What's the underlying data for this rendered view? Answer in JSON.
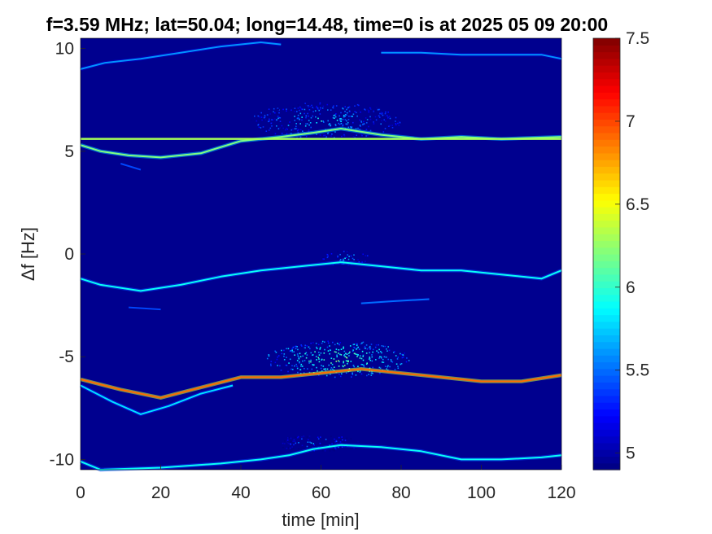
{
  "chart_data": {
    "type": "heatmap",
    "title": "f=3.59 MHz;  lat=50.04; long=14.48, time=0 is at 2025 05 09 20:00",
    "xlabel": "time [min]",
    "ylabel": "Δf [Hz]",
    "xlim": [
      0,
      120
    ],
    "ylim": [
      -10.5,
      10.5
    ],
    "xticks": [
      "0",
      "20",
      "40",
      "60",
      "80",
      "100",
      "120"
    ],
    "yticks": [
      "-10",
      "-5",
      "0",
      "5",
      "10"
    ],
    "colorbar": {
      "range": [
        4.9,
        7.5
      ],
      "ticks": [
        "5",
        "5.5",
        "6",
        "6.5",
        "7",
        "7.5"
      ],
      "colormap": "jet"
    },
    "background_color": "#00008f",
    "constant_line": {
      "y": 5.6,
      "x": [
        0,
        120
      ],
      "level": 6.3
    },
    "traces": [
      {
        "level": 6.2,
        "points": [
          [
            0,
            5.3
          ],
          [
            5,
            5.0
          ],
          [
            12,
            4.8
          ],
          [
            20,
            4.7
          ],
          [
            30,
            4.9
          ],
          [
            40,
            5.5
          ],
          [
            50,
            5.7
          ],
          [
            58,
            5.9
          ],
          [
            65,
            6.1
          ],
          [
            75,
            5.8
          ],
          [
            85,
            5.6
          ],
          [
            95,
            5.7
          ],
          [
            105,
            5.6
          ],
          [
            120,
            5.7
          ]
        ]
      },
      {
        "level": 5.9,
        "points": [
          [
            0,
            -1.2
          ],
          [
            5,
            -1.5
          ],
          [
            15,
            -1.8
          ],
          [
            25,
            -1.5
          ],
          [
            35,
            -1.1
          ],
          [
            45,
            -0.8
          ],
          [
            55,
            -0.6
          ],
          [
            65,
            -0.4
          ],
          [
            75,
            -0.6
          ],
          [
            85,
            -0.8
          ],
          [
            95,
            -0.8
          ],
          [
            105,
            -1.0
          ],
          [
            115,
            -1.2
          ],
          [
            120,
            -0.8
          ]
        ]
      },
      {
        "level": 6.9,
        "points": [
          [
            0,
            -6.1
          ],
          [
            10,
            -6.6
          ],
          [
            20,
            -7.0
          ],
          [
            30,
            -6.5
          ],
          [
            40,
            -6.0
          ],
          [
            50,
            -6.0
          ],
          [
            60,
            -5.8
          ],
          [
            70,
            -5.6
          ],
          [
            80,
            -5.8
          ],
          [
            90,
            -6.0
          ],
          [
            100,
            -6.2
          ],
          [
            110,
            -6.2
          ],
          [
            120,
            -5.9
          ]
        ]
      },
      {
        "level": 5.8,
        "points": [
          [
            0,
            -6.4
          ],
          [
            8,
            -7.2
          ],
          [
            15,
            -7.8
          ],
          [
            22,
            -7.4
          ],
          [
            30,
            -6.8
          ],
          [
            38,
            -6.4
          ]
        ]
      },
      {
        "level": 5.9,
        "points": [
          [
            0,
            -10.1
          ],
          [
            5,
            -10.5
          ],
          [
            20,
            -10.4
          ],
          [
            35,
            -10.2
          ],
          [
            45,
            -10.0
          ],
          [
            52,
            -9.8
          ],
          [
            58,
            -9.5
          ],
          [
            65,
            -9.3
          ],
          [
            75,
            -9.4
          ],
          [
            85,
            -9.6
          ],
          [
            95,
            -10.0
          ],
          [
            105,
            -10.0
          ],
          [
            115,
            -9.9
          ],
          [
            120,
            -9.8
          ]
        ]
      },
      {
        "level": 5.6,
        "points": [
          [
            0,
            9.0
          ],
          [
            6,
            9.3
          ],
          [
            15,
            9.5
          ],
          [
            25,
            9.8
          ],
          [
            35,
            10.1
          ],
          [
            45,
            10.3
          ],
          [
            50,
            10.2
          ]
        ]
      },
      {
        "level": 5.6,
        "points": [
          [
            75,
            9.8
          ],
          [
            85,
            9.8
          ],
          [
            95,
            9.7
          ],
          [
            105,
            9.7
          ],
          [
            115,
            9.7
          ],
          [
            120,
            9.5
          ]
        ]
      },
      {
        "level": 5.5,
        "points": [
          [
            70,
            -2.4
          ],
          [
            78,
            -2.3
          ],
          [
            87,
            -2.2
          ]
        ]
      },
      {
        "level": 5.4,
        "points": [
          [
            12,
            -2.6
          ],
          [
            20,
            -2.7
          ]
        ]
      },
      {
        "level": 5.4,
        "points": [
          [
            10,
            4.4
          ],
          [
            15,
            4.1
          ]
        ]
      }
    ],
    "clouds": [
      {
        "x": [
          42,
          80
        ],
        "y": [
          5.6,
          7.4
        ],
        "level": 5.8
      },
      {
        "x": [
          46,
          82
        ],
        "y": [
          -6.0,
          -4.2
        ],
        "level": 6.1
      },
      {
        "x": [
          48,
          70
        ],
        "y": [
          -9.6,
          -8.8
        ],
        "level": 5.6
      },
      {
        "x": [
          60,
          72
        ],
        "y": [
          -0.6,
          0.2
        ],
        "level": 5.7
      }
    ]
  }
}
